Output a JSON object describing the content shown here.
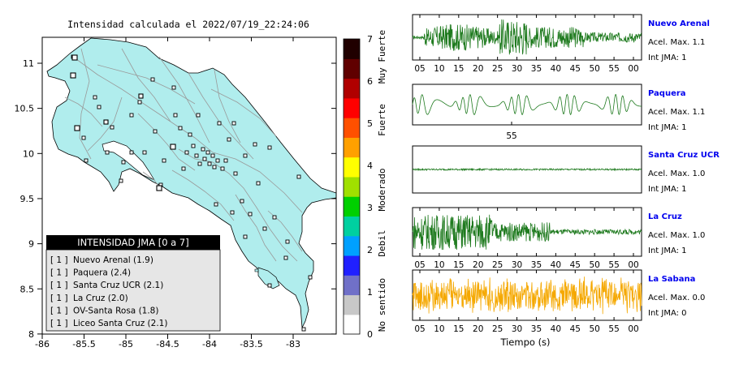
{
  "map": {
    "title": "Intensidad calculada el 2022/07/19_22:24:06",
    "x_ticks": [
      "-86",
      "-85.5",
      "-85",
      "-84.5",
      "-84",
      "-83.5",
      "-83"
    ],
    "y_ticks": [
      "11",
      "10.5",
      "10",
      "9.5",
      "9",
      "8.5",
      "8"
    ],
    "legend": {
      "header": "INTENSIDAD JMA [0 a 7]",
      "items": [
        {
          "count": "[ 1 ]",
          "label": "Nuevo Arenal (1.9)"
        },
        {
          "count": "[ 1 ]",
          "label": "Paquera (2.4)"
        },
        {
          "count": "[ 1 ]",
          "label": "Santa Cruz UCR (2.1)"
        },
        {
          "count": "[ 1 ]",
          "label": "La Cruz (2.0)"
        },
        {
          "count": "[ 1 ]",
          "label": "OV-Santa Rosa (1.8)"
        },
        {
          "count": "[ 1 ]",
          "label": "Liceo Santa Cruz (2.1)"
        }
      ]
    }
  },
  "colorbar": {
    "ticks": [
      "7",
      "6",
      "5",
      "4",
      "3",
      "2",
      "1",
      "0"
    ],
    "categories": [
      "Muy Fuerte",
      "Fuerte",
      "Moderado",
      "Debil",
      "No sentido"
    ],
    "colors": [
      "#ffffff",
      "#c8c8c8",
      "#7070c8",
      "#2020ff",
      "#00a0ff",
      "#00d0a0",
      "#00d000",
      "#a0e000",
      "#ffff00",
      "#ffa000",
      "#ff5000",
      "#ff0000",
      "#b00000",
      "#600000",
      "#200000"
    ]
  },
  "stations": [
    {
      "name": "Nuevo Arenal",
      "acel": "Acel. Max. 1.1",
      "jma": "Int JMA: 1",
      "color": "#1e7a1e"
    },
    {
      "name": "Paquera",
      "acel": "Acel. Max. 1.1",
      "jma": "Int JMA: 1",
      "color": "#1e7a1e"
    },
    {
      "name": "Santa Cruz UCR",
      "acel": "Acel. Max. 1.0",
      "jma": "Int JMA: 1",
      "color": "#1e7a1e"
    },
    {
      "name": "La Cruz",
      "acel": "Acel. Max. 1.0",
      "jma": "Int JMA: 1",
      "color": "#1e7a1e"
    },
    {
      "name": "La Sabana",
      "acel": "Acel. Max. 0.0",
      "jma": "Int JMA: 0",
      "color": "#f5a800"
    }
  ],
  "seismo": {
    "time_ticks": [
      "05",
      "10",
      "15",
      "20",
      "25",
      "30",
      "35",
      "40",
      "45",
      "50",
      "55",
      "00"
    ],
    "paquera_tick": "55",
    "xlabel": "Tiempo (s)"
  },
  "colors": {
    "sea": "#ffffff",
    "land": "#b0eded",
    "station_name": "#0000ee",
    "legend_header_bg": "#000000",
    "legend_bg": "#e6e6e6"
  }
}
